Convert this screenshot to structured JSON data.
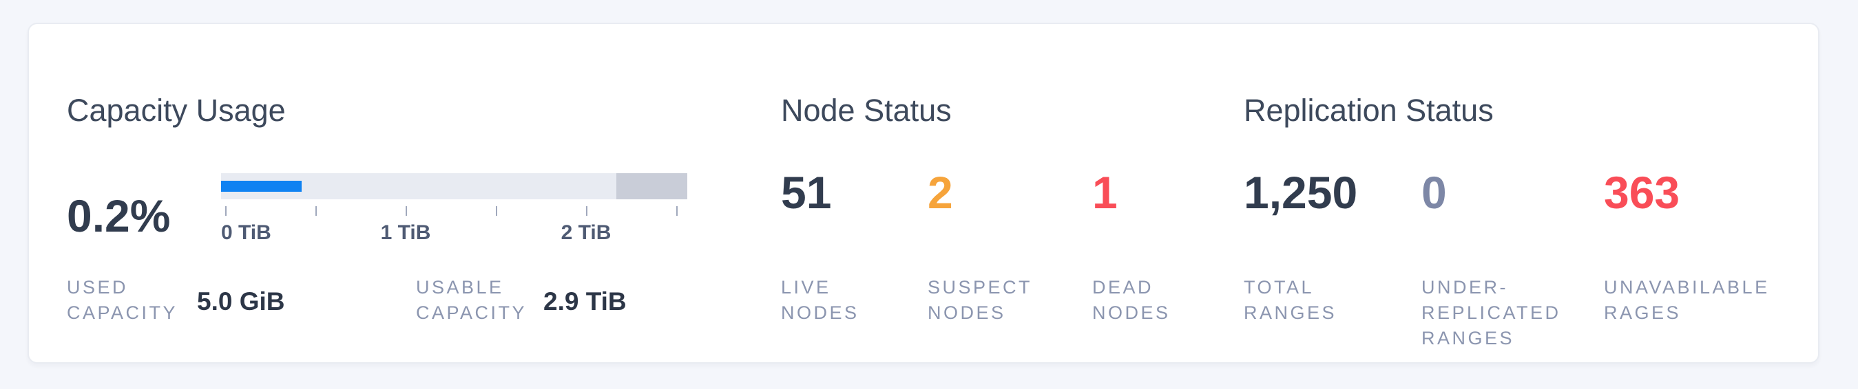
{
  "card": {
    "sections": {
      "capacity": {
        "title": "Capacity Usage",
        "used_percent": "0.2%",
        "stats": [
          {
            "label": "USED\nCAPACITY",
            "value": "5.0 GiB"
          },
          {
            "label": "USABLE\nCAPACITY",
            "value": "2.9 TiB"
          }
        ]
      },
      "node_status": {
        "title": "Node Status",
        "stats": [
          {
            "label": "LIVE\nNODES",
            "value": "51",
            "color": "dark"
          },
          {
            "label": "SUSPECT\nNODES",
            "value": "2",
            "color": "warning"
          },
          {
            "label": "DEAD\nNODES",
            "value": "1",
            "color": "danger"
          }
        ]
      },
      "replication_status": {
        "title": "Replication Status",
        "stats": [
          {
            "label": "TOTAL\nRANGES",
            "value": "1,250",
            "color": "dark"
          },
          {
            "label": "UNDER-\nREPLICATED\nRANGES",
            "value": "0",
            "color": "muted"
          },
          {
            "label": "UNAVABILABLE\nRAGES",
            "value": "363",
            "color": "danger"
          }
        ]
      }
    }
  },
  "chart_data": {
    "type": "bar",
    "title": "Capacity Usage",
    "used_percent": 0.2,
    "used_capacity": "5.0 GiB",
    "usable_capacity": "2.9 TiB",
    "axis": {
      "unit": "TiB",
      "range_tib": [
        0,
        2.5
      ],
      "ticks_tib": [
        0,
        0.5,
        1,
        1.5,
        2,
        2.5
      ],
      "labels": [
        {
          "text": "0 TiB",
          "tib": 0
        },
        {
          "text": "1 TiB",
          "tib": 1
        },
        {
          "text": "2 TiB",
          "tib": 2
        }
      ]
    },
    "segments": {
      "used_fill_fraction": 0.173,
      "right_reserved_fraction": 0.152
    }
  },
  "colors": {
    "page_background": "#f4f6fb",
    "card_background": "#ffffff",
    "title_text": "#3d495c",
    "number_dark": "#313c4e",
    "number_warning_orange": "#f6a43b",
    "number_danger_red": "#f94d57",
    "number_muted": "#7d87a6",
    "label_muted": "#8b95af",
    "bar_fill_blue": "#0f82f2",
    "bar_track_gray": "#e8ebf2",
    "bar_reserved_gray": "#c9cdd8"
  }
}
